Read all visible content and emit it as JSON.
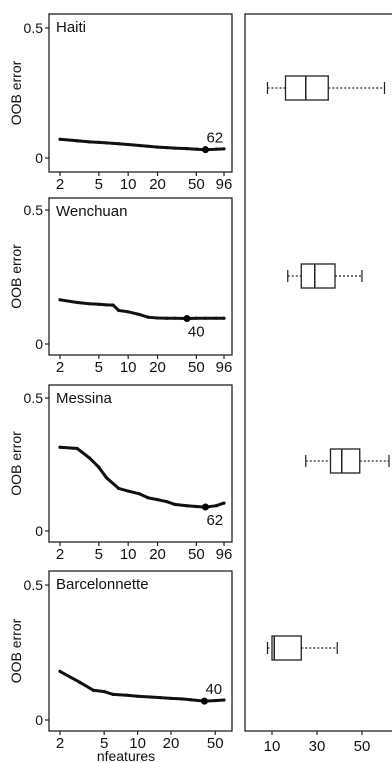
{
  "chart_data": [
    {
      "type": "line",
      "title": "Haiti",
      "ylabel": "OOB error",
      "xlabel": "",
      "x_scale": "log",
      "x_ticks": [
        2,
        5,
        10,
        20,
        50,
        96
      ],
      "y_ticks": [
        0,
        0.5
      ],
      "xlim": [
        2,
        96
      ],
      "ylim": [
        0,
        0.5
      ],
      "optimum": {
        "x": 62,
        "y": 0.032,
        "label": "62"
      },
      "series": [
        {
          "x": [
            2,
            3,
            4,
            5,
            6,
            8,
            10,
            13,
            16,
            20,
            25,
            30,
            40,
            50,
            62,
            80,
            96
          ],
          "y": [
            0.072,
            0.066,
            0.062,
            0.06,
            0.058,
            0.055,
            0.052,
            0.048,
            0.045,
            0.042,
            0.04,
            0.038,
            0.036,
            0.034,
            0.032,
            0.034,
            0.035
          ]
        }
      ]
    },
    {
      "type": "line",
      "title": "Wenchuan",
      "ylabel": "OOB error",
      "xlabel": "",
      "x_scale": "log",
      "x_ticks": [
        2,
        5,
        10,
        20,
        50,
        96
      ],
      "y_ticks": [
        0,
        0.5
      ],
      "xlim": [
        2,
        96
      ],
      "ylim": [
        0,
        0.5
      ],
      "optimum": {
        "x": 40,
        "y": 0.095,
        "label": "40"
      },
      "series": [
        {
          "x": [
            2,
            3,
            4,
            5,
            6,
            7,
            8,
            10,
            13,
            16,
            20,
            25,
            30,
            40,
            50,
            62,
            80,
            96
          ],
          "y": [
            0.165,
            0.155,
            0.15,
            0.148,
            0.146,
            0.145,
            0.125,
            0.12,
            0.11,
            0.1,
            0.097,
            0.096,
            0.096,
            0.095,
            0.096,
            0.096,
            0.096,
            0.096
          ]
        }
      ]
    },
    {
      "type": "line",
      "title": "Messina",
      "ylabel": "OOB error",
      "xlabel": "",
      "x_scale": "log",
      "x_ticks": [
        2,
        5,
        10,
        20,
        50,
        96
      ],
      "y_ticks": [
        0,
        0.5
      ],
      "xlim": [
        2,
        96
      ],
      "ylim": [
        0,
        0.5
      ],
      "optimum": {
        "x": 62,
        "y": 0.09,
        "label": "62"
      },
      "series": [
        {
          "x": [
            2,
            3,
            4,
            5,
            6,
            8,
            10,
            13,
            16,
            20,
            25,
            30,
            40,
            50,
            62,
            80,
            96
          ],
          "y": [
            0.315,
            0.31,
            0.275,
            0.24,
            0.2,
            0.16,
            0.15,
            0.14,
            0.125,
            0.118,
            0.11,
            0.1,
            0.095,
            0.092,
            0.09,
            0.095,
            0.105
          ]
        }
      ]
    },
    {
      "type": "line",
      "title": "Barcelonnette",
      "ylabel": "OOB error",
      "xlabel": "nfeatures",
      "x_scale": "log",
      "x_ticks": [
        2,
        5,
        10,
        20,
        50
      ],
      "y_ticks": [
        0,
        0.5
      ],
      "xlim": [
        2,
        60
      ],
      "ylim": [
        0,
        0.5
      ],
      "optimum": {
        "x": 40,
        "y": 0.07,
        "label": "40"
      },
      "series": [
        {
          "x": [
            2,
            3,
            4,
            5,
            6,
            8,
            10,
            13,
            16,
            20,
            25,
            30,
            40,
            50,
            60
          ],
          "y": [
            0.18,
            0.14,
            0.11,
            0.105,
            0.095,
            0.092,
            0.088,
            0.085,
            0.083,
            0.08,
            0.078,
            0.075,
            0.07,
            0.072,
            0.074
          ]
        }
      ]
    },
    {
      "type": "boxplot",
      "x_ticks": [
        10,
        30,
        50
      ],
      "xlim": [
        5,
        60
      ],
      "boxes": [
        {
          "name": "Haiti",
          "whisker_low": 8,
          "q1": 16,
          "median": 25,
          "q3": 35,
          "whisker_high": 60
        },
        {
          "name": "Wenchuan",
          "whisker_low": 17,
          "q1": 23,
          "median": 29,
          "q3": 38,
          "whisker_high": 50
        },
        {
          "name": "Messina",
          "whisker_low": 25,
          "q1": 36,
          "median": 41,
          "q3": 49,
          "whisker_high": 62
        },
        {
          "name": "Barcelonnette",
          "whisker_low": 8,
          "q1": 10,
          "median": 11,
          "q3": 23,
          "whisker_high": 39
        }
      ]
    }
  ]
}
